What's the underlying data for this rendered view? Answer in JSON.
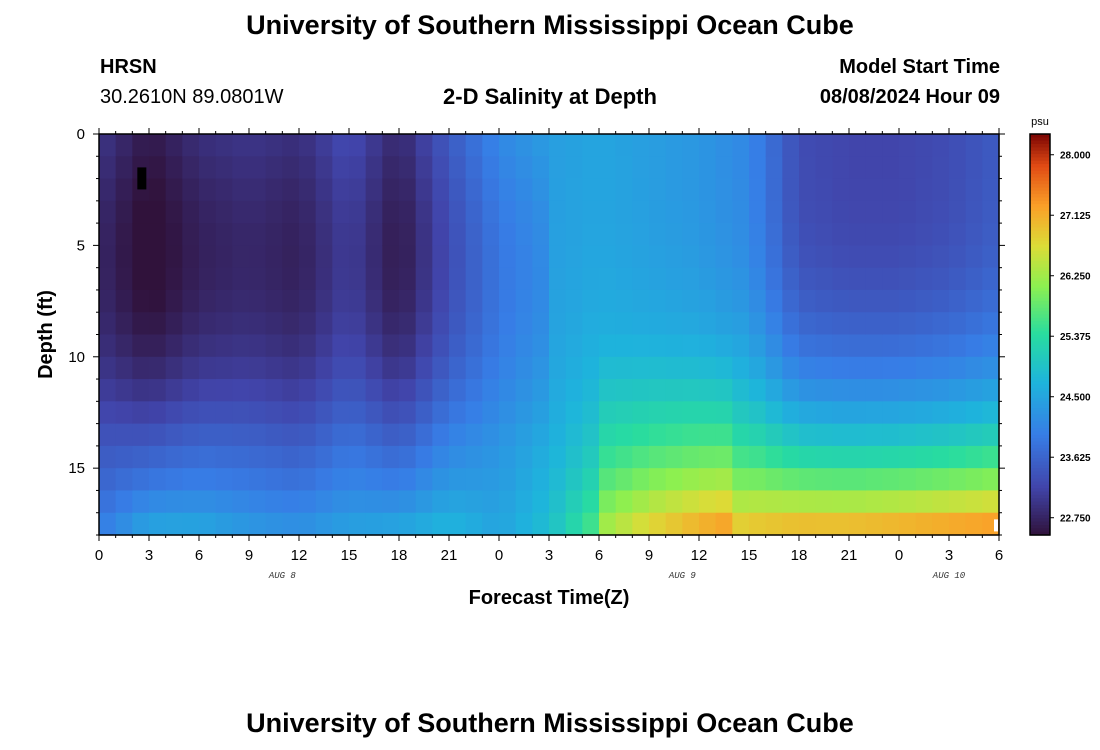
{
  "header": {
    "title": "University of Southern Mississippi Ocean Cube",
    "station": "HRSN",
    "coords": "30.2610N  89.0801W",
    "plot_title": "2-D Salinity at Depth",
    "model_start_label": "Model Start Time",
    "model_start_value": "08/08/2024 Hour 09"
  },
  "footer": {
    "title": "University of Southern Mississippi Ocean Cube"
  },
  "chart_data": {
    "type": "heatmap",
    "title": "2-D Salinity at Depth",
    "xlabel": "Forecast Time(Z)",
    "ylabel": "Depth (ft)",
    "x_range_hours": [
      0,
      54
    ],
    "x_tick_labels": [
      "0",
      "3",
      "6",
      "9",
      "12",
      "15",
      "18",
      "21",
      "0",
      "3",
      "6",
      "9",
      "12",
      "15",
      "18",
      "21",
      "0",
      "3",
      "6"
    ],
    "date_labels": [
      {
        "hour": 11,
        "text": "AUG 8"
      },
      {
        "hour": 35,
        "text": "AUG 9"
      },
      {
        "hour": 51,
        "text": "AUG 10"
      }
    ],
    "y_range_ft": [
      0,
      18
    ],
    "y_ticks": [
      0,
      5,
      10,
      15
    ],
    "y_tick_labels": [
      "0",
      "5",
      "10",
      "15"
    ],
    "colorbar": {
      "unit": "psu",
      "min": 22.5,
      "max": 28.3,
      "ticks": [
        22.75,
        23.625,
        24.5,
        25.375,
        26.25,
        27.125,
        28.0
      ],
      "tick_labels": [
        "22.750",
        "23.625",
        "24.500",
        "25.375",
        "26.250",
        "27.125",
        "28.000"
      ]
    },
    "grid": false,
    "sample_surface_psu": [
      23.0,
      22.6,
      22.9,
      23.0,
      22.9,
      23.3,
      22.8,
      23.5,
      24.1,
      24.4,
      24.5,
      24.4,
      24.3,
      24.1,
      23.3,
      23.2,
      23.2,
      23.3,
      23.5
    ],
    "sample_bottom_psu": [
      24.0,
      24.6,
      24.6,
      24.4,
      24.3,
      24.5,
      24.6,
      24.8,
      24.5,
      24.9,
      25.8,
      26.4,
      26.8,
      27.1,
      27.3,
      27.3,
      27.4,
      27.5,
      27.6
    ]
  }
}
